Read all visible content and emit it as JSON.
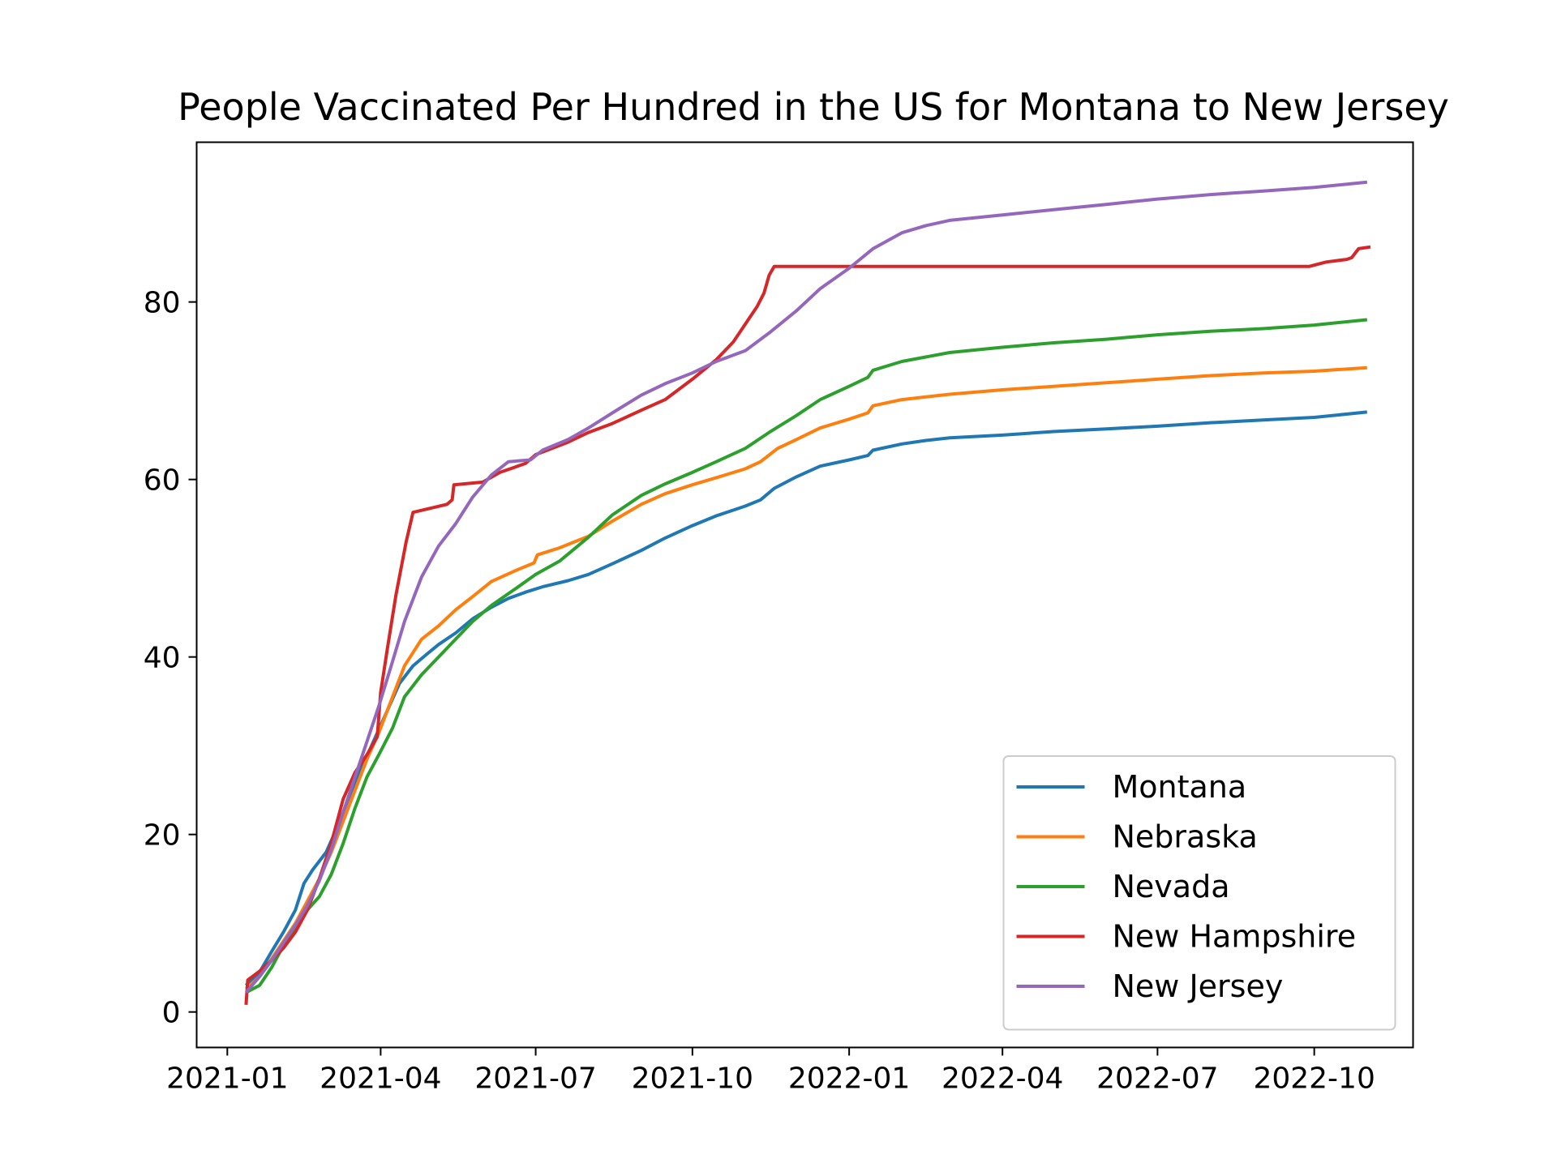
{
  "chart_data": {
    "type": "line",
    "title": "People Vaccinated Per Hundred in the US for Montana to New Jersey",
    "xlabel": "",
    "ylabel": "",
    "x_axis_type": "date",
    "xlim": [
      "2020-12-14",
      "2022-11-28"
    ],
    "ylim": [
      -4,
      98
    ],
    "x_ticks": [
      "2021-01-01",
      "2021-04-01",
      "2021-07-01",
      "2021-10-01",
      "2022-01-01",
      "2022-04-01",
      "2022-07-01",
      "2022-10-01"
    ],
    "x_tick_labels": [
      "2021-01",
      "2021-04",
      "2021-07",
      "2021-10",
      "2022-01",
      "2022-04",
      "2022-07",
      "2022-10"
    ],
    "y_ticks": [
      0,
      20,
      40,
      60,
      80
    ],
    "y_tick_labels": [
      "0",
      "20",
      "40",
      "60",
      "80"
    ],
    "grid": false,
    "legend_position": "lower-right",
    "series": [
      {
        "name": "Montana",
        "color": "#1f77b4",
        "points": [
          [
            "2021-01-12",
            3.0
          ],
          [
            "2021-01-20",
            4.5
          ],
          [
            "2021-01-27",
            6.8
          ],
          [
            "2021-02-03",
            9.0
          ],
          [
            "2021-02-10",
            11.5
          ],
          [
            "2021-02-15",
            14.5
          ],
          [
            "2021-02-20",
            16.0
          ],
          [
            "2021-02-28",
            18.0
          ],
          [
            "2021-03-07",
            21.0
          ],
          [
            "2021-03-15",
            25.0
          ],
          [
            "2021-03-22",
            28.0
          ],
          [
            "2021-03-29",
            31.0
          ],
          [
            "2021-04-05",
            34.0
          ],
          [
            "2021-04-12",
            37.0
          ],
          [
            "2021-04-20",
            39.0
          ],
          [
            "2021-04-28",
            40.3
          ],
          [
            "2021-05-05",
            41.4
          ],
          [
            "2021-05-15",
            42.7
          ],
          [
            "2021-05-25",
            44.3
          ],
          [
            "2021-06-05",
            45.6
          ],
          [
            "2021-06-15",
            46.6
          ],
          [
            "2021-06-25",
            47.3
          ],
          [
            "2021-07-05",
            47.9
          ],
          [
            "2021-07-20",
            48.6
          ],
          [
            "2021-08-01",
            49.3
          ],
          [
            "2021-08-15",
            50.5
          ],
          [
            "2021-09-01",
            52.0
          ],
          [
            "2021-09-15",
            53.4
          ],
          [
            "2021-10-01",
            54.8
          ],
          [
            "2021-10-15",
            55.9
          ],
          [
            "2021-11-01",
            57.0
          ],
          [
            "2021-11-10",
            57.7
          ],
          [
            "2021-11-18",
            59.0
          ],
          [
            "2021-12-01",
            60.3
          ],
          [
            "2021-12-15",
            61.5
          ],
          [
            "2022-01-01",
            62.2
          ],
          [
            "2022-01-12",
            62.7
          ],
          [
            "2022-01-15",
            63.3
          ],
          [
            "2022-02-01",
            64.0
          ],
          [
            "2022-02-15",
            64.4
          ],
          [
            "2022-03-01",
            64.7
          ],
          [
            "2022-04-01",
            65.0
          ],
          [
            "2022-05-01",
            65.4
          ],
          [
            "2022-06-01",
            65.7
          ],
          [
            "2022-07-01",
            66.0
          ],
          [
            "2022-08-01",
            66.4
          ],
          [
            "2022-09-01",
            66.7
          ],
          [
            "2022-10-01",
            67.0
          ],
          [
            "2022-11-01",
            67.6
          ]
        ]
      },
      {
        "name": "Nebraska",
        "color": "#ff7f0e",
        "points": [
          [
            "2021-01-12",
            2.6
          ],
          [
            "2021-01-20",
            4.0
          ],
          [
            "2021-01-27",
            6.0
          ],
          [
            "2021-02-03",
            8.0
          ],
          [
            "2021-02-10",
            10.0
          ],
          [
            "2021-02-17",
            12.5
          ],
          [
            "2021-02-24",
            15.0
          ],
          [
            "2021-03-03",
            18.0
          ],
          [
            "2021-03-10",
            21.5
          ],
          [
            "2021-03-17",
            25.0
          ],
          [
            "2021-03-24",
            28.5
          ],
          [
            "2021-03-31",
            31.5
          ],
          [
            "2021-04-08",
            35.5
          ],
          [
            "2021-04-15",
            39.0
          ],
          [
            "2021-04-25",
            42.0
          ],
          [
            "2021-05-05",
            43.5
          ],
          [
            "2021-05-15",
            45.3
          ],
          [
            "2021-05-25",
            46.8
          ],
          [
            "2021-06-05",
            48.5
          ],
          [
            "2021-06-20",
            49.8
          ],
          [
            "2021-06-30",
            50.6
          ],
          [
            "2021-07-02",
            51.5
          ],
          [
            "2021-07-15",
            52.3
          ],
          [
            "2021-08-01",
            53.6
          ],
          [
            "2021-08-15",
            55.3
          ],
          [
            "2021-09-01",
            57.2
          ],
          [
            "2021-09-15",
            58.4
          ],
          [
            "2021-10-01",
            59.4
          ],
          [
            "2021-10-15",
            60.2
          ],
          [
            "2021-11-01",
            61.2
          ],
          [
            "2021-11-10",
            62.0
          ],
          [
            "2021-11-20",
            63.5
          ],
          [
            "2021-12-01",
            64.5
          ],
          [
            "2021-12-15",
            65.8
          ],
          [
            "2022-01-01",
            66.8
          ],
          [
            "2022-01-12",
            67.5
          ],
          [
            "2022-01-15",
            68.3
          ],
          [
            "2022-02-01",
            69.0
          ],
          [
            "2022-03-01",
            69.6
          ],
          [
            "2022-04-01",
            70.1
          ],
          [
            "2022-05-01",
            70.5
          ],
          [
            "2022-06-01",
            70.9
          ],
          [
            "2022-07-01",
            71.3
          ],
          [
            "2022-08-01",
            71.7
          ],
          [
            "2022-09-01",
            72.0
          ],
          [
            "2022-10-01",
            72.2
          ],
          [
            "2022-11-01",
            72.6
          ]
        ]
      },
      {
        "name": "Nevada",
        "color": "#2ca02c",
        "points": [
          [
            "2021-01-12",
            2.2
          ],
          [
            "2021-01-20",
            3.0
          ],
          [
            "2021-01-27",
            5.0
          ],
          [
            "2021-02-03",
            7.5
          ],
          [
            "2021-02-10",
            9.5
          ],
          [
            "2021-02-17",
            11.5
          ],
          [
            "2021-02-24",
            13.0
          ],
          [
            "2021-03-03",
            15.5
          ],
          [
            "2021-03-10",
            19.0
          ],
          [
            "2021-03-17",
            23.0
          ],
          [
            "2021-03-24",
            26.5
          ],
          [
            "2021-03-31",
            29.0
          ],
          [
            "2021-04-08",
            32.0
          ],
          [
            "2021-04-15",
            35.5
          ],
          [
            "2021-04-25",
            38.0
          ],
          [
            "2021-05-05",
            40.0
          ],
          [
            "2021-05-15",
            42.0
          ],
          [
            "2021-05-25",
            44.0
          ],
          [
            "2021-06-05",
            45.8
          ],
          [
            "2021-06-20",
            47.8
          ],
          [
            "2021-07-01",
            49.3
          ],
          [
            "2021-07-15",
            50.8
          ],
          [
            "2021-08-01",
            53.5
          ],
          [
            "2021-08-15",
            56.0
          ],
          [
            "2021-09-01",
            58.2
          ],
          [
            "2021-09-15",
            59.5
          ],
          [
            "2021-10-01",
            60.8
          ],
          [
            "2021-10-15",
            62.0
          ],
          [
            "2021-11-01",
            63.5
          ],
          [
            "2021-11-15",
            65.3
          ],
          [
            "2021-12-01",
            67.2
          ],
          [
            "2021-12-15",
            69.0
          ],
          [
            "2022-01-01",
            70.5
          ],
          [
            "2022-01-12",
            71.5
          ],
          [
            "2022-01-15",
            72.3
          ],
          [
            "2022-02-01",
            73.3
          ],
          [
            "2022-03-01",
            74.3
          ],
          [
            "2022-04-01",
            74.9
          ],
          [
            "2022-05-01",
            75.4
          ],
          [
            "2022-06-01",
            75.8
          ],
          [
            "2022-07-01",
            76.3
          ],
          [
            "2022-08-01",
            76.7
          ],
          [
            "2022-09-01",
            77.0
          ],
          [
            "2022-10-01",
            77.4
          ],
          [
            "2022-11-01",
            78.0
          ]
        ]
      },
      {
        "name": "New Hampshire",
        "color": "#d62728",
        "points": [
          [
            "2021-01-12",
            0.8
          ],
          [
            "2021-01-13",
            3.6
          ],
          [
            "2021-01-20",
            4.6
          ],
          [
            "2021-01-27",
            5.8
          ],
          [
            "2021-02-03",
            7.2
          ],
          [
            "2021-02-10",
            9.0
          ],
          [
            "2021-02-17",
            11.5
          ],
          [
            "2021-02-24",
            15.0
          ],
          [
            "2021-03-03",
            19.0
          ],
          [
            "2021-03-10",
            24.0
          ],
          [
            "2021-03-17",
            27.0
          ],
          [
            "2021-03-24",
            29.0
          ],
          [
            "2021-03-30",
            31.0
          ],
          [
            "2021-04-01",
            36.0
          ],
          [
            "2021-04-05",
            41.0
          ],
          [
            "2021-04-10",
            47.0
          ],
          [
            "2021-04-16",
            53.0
          ],
          [
            "2021-04-20",
            56.3
          ],
          [
            "2021-05-10",
            57.2
          ],
          [
            "2021-05-13",
            57.7
          ],
          [
            "2021-05-14",
            59.4
          ],
          [
            "2021-05-31",
            59.7
          ],
          [
            "2021-06-10",
            60.8
          ],
          [
            "2021-06-25",
            61.8
          ],
          [
            "2021-07-01",
            62.8
          ],
          [
            "2021-07-20",
            64.2
          ],
          [
            "2021-08-01",
            65.3
          ],
          [
            "2021-08-15",
            66.3
          ],
          [
            "2021-09-01",
            67.8
          ],
          [
            "2021-09-15",
            69.0
          ],
          [
            "2021-10-01",
            71.3
          ],
          [
            "2021-10-15",
            73.5
          ],
          [
            "2021-10-25",
            75.5
          ],
          [
            "2021-11-01",
            77.5
          ],
          [
            "2021-11-08",
            79.5
          ],
          [
            "2021-11-12",
            81.0
          ],
          [
            "2021-11-15",
            83.0
          ],
          [
            "2021-11-18",
            84.0
          ],
          [
            "2022-09-28",
            84.0
          ],
          [
            "2022-10-08",
            84.5
          ],
          [
            "2022-10-20",
            84.8
          ],
          [
            "2022-10-23",
            85.0
          ],
          [
            "2022-10-27",
            86.0
          ],
          [
            "2022-11-03",
            86.2
          ]
        ]
      },
      {
        "name": "New Jersey",
        "color": "#9467bd",
        "points": [
          [
            "2021-01-12",
            2.2
          ],
          [
            "2021-01-20",
            4.0
          ],
          [
            "2021-01-27",
            5.8
          ],
          [
            "2021-02-03",
            7.8
          ],
          [
            "2021-02-10",
            9.8
          ],
          [
            "2021-02-17",
            12.0
          ],
          [
            "2021-02-24",
            14.8
          ],
          [
            "2021-03-03",
            18.3
          ],
          [
            "2021-03-10",
            22.5
          ],
          [
            "2021-03-17",
            26.5
          ],
          [
            "2021-03-24",
            30.5
          ],
          [
            "2021-03-31",
            34.5
          ],
          [
            "2021-04-08",
            39.5
          ],
          [
            "2021-04-15",
            44.0
          ],
          [
            "2021-04-25",
            49.0
          ],
          [
            "2021-05-05",
            52.5
          ],
          [
            "2021-05-15",
            55.0
          ],
          [
            "2021-05-25",
            58.0
          ],
          [
            "2021-06-05",
            60.5
          ],
          [
            "2021-06-15",
            62.0
          ],
          [
            "2021-06-28",
            62.2
          ],
          [
            "2021-07-05",
            63.3
          ],
          [
            "2021-07-20",
            64.5
          ],
          [
            "2021-08-01",
            65.8
          ],
          [
            "2021-08-15",
            67.5
          ],
          [
            "2021-09-01",
            69.5
          ],
          [
            "2021-09-15",
            70.8
          ],
          [
            "2021-10-01",
            72.0
          ],
          [
            "2021-10-15",
            73.3
          ],
          [
            "2021-11-01",
            74.5
          ],
          [
            "2021-11-15",
            76.5
          ],
          [
            "2021-12-01",
            79.0
          ],
          [
            "2021-12-15",
            81.5
          ],
          [
            "2022-01-01",
            83.8
          ],
          [
            "2022-01-15",
            86.0
          ],
          [
            "2022-02-01",
            87.8
          ],
          [
            "2022-02-15",
            88.6
          ],
          [
            "2022-03-01",
            89.2
          ],
          [
            "2022-04-01",
            89.8
          ],
          [
            "2022-05-01",
            90.4
          ],
          [
            "2022-06-01",
            91.0
          ],
          [
            "2022-07-01",
            91.6
          ],
          [
            "2022-08-01",
            92.1
          ],
          [
            "2022-09-01",
            92.5
          ],
          [
            "2022-10-01",
            92.9
          ],
          [
            "2022-11-01",
            93.5
          ]
        ]
      }
    ]
  }
}
